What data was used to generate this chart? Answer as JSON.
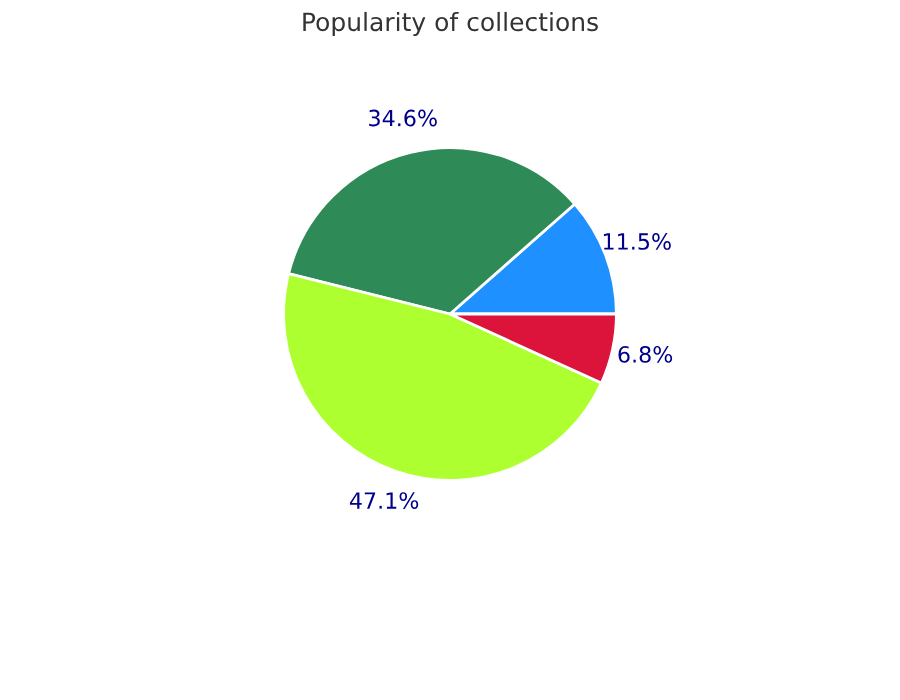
{
  "chart_data": {
    "type": "pie",
    "title": "Popularity of collections",
    "categories": [
      null,
      null,
      null,
      null
    ],
    "values": [
      11.5,
      34.6,
      47.1,
      6.8
    ],
    "value_labels": [
      "11.5%",
      "34.6%",
      "47.1%",
      "6.8%"
    ],
    "colors": [
      "#1e90ff",
      "#2e8b57",
      "#adff2f",
      "#dc143c"
    ]
  }
}
